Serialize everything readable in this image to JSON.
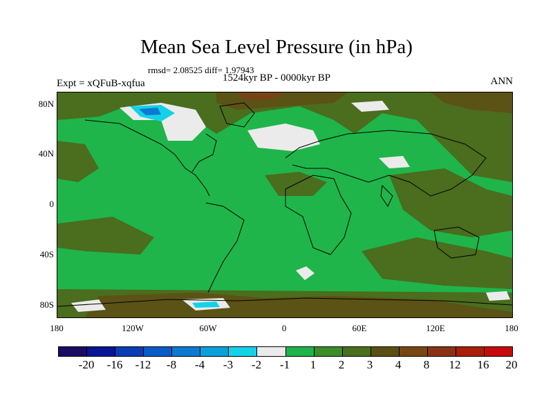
{
  "title": "Mean Sea Level Pressure (in hPa)",
  "stats": "rmsd= 2.08525 diff= 1.97943",
  "experiment": "Expt = xQFuB-xqfua",
  "period": "1524kyr BP - 0000kyr BP",
  "season": "ANN",
  "lat_labels": [
    "80N",
    "40N",
    "0",
    "40S",
    "80S"
  ],
  "lon_labels": [
    "180",
    "120W",
    "60W",
    "0",
    "60E",
    "120E",
    "180"
  ],
  "colorbar": {
    "colors": [
      "#1a0c64",
      "#0a1496",
      "#0a3cb4",
      "#0a5ac8",
      "#0a7ad2",
      "#0aa0dc",
      "#14d2e6",
      "#ebebeb",
      "#1eb44b",
      "#3c8c28",
      "#4b6e1e",
      "#5a5014",
      "#784614",
      "#8c3214",
      "#aa1e0a",
      "#c80a0a"
    ],
    "labels": [
      "-20",
      "-16",
      "-12",
      "-8",
      "-4",
      "-3",
      "-2",
      "-1",
      "1",
      "2",
      "3",
      "4",
      "8",
      "12",
      "16",
      "20"
    ]
  },
  "field_colors": {
    "background": "#1fb54a",
    "positive_3": "#4a6d1e",
    "positive_4": "#5b5215",
    "positive_8": "#774315",
    "near_zero": "#ebebeb",
    "negative_2": "#14d2e6",
    "negative_4": "#0a7ad2"
  }
}
